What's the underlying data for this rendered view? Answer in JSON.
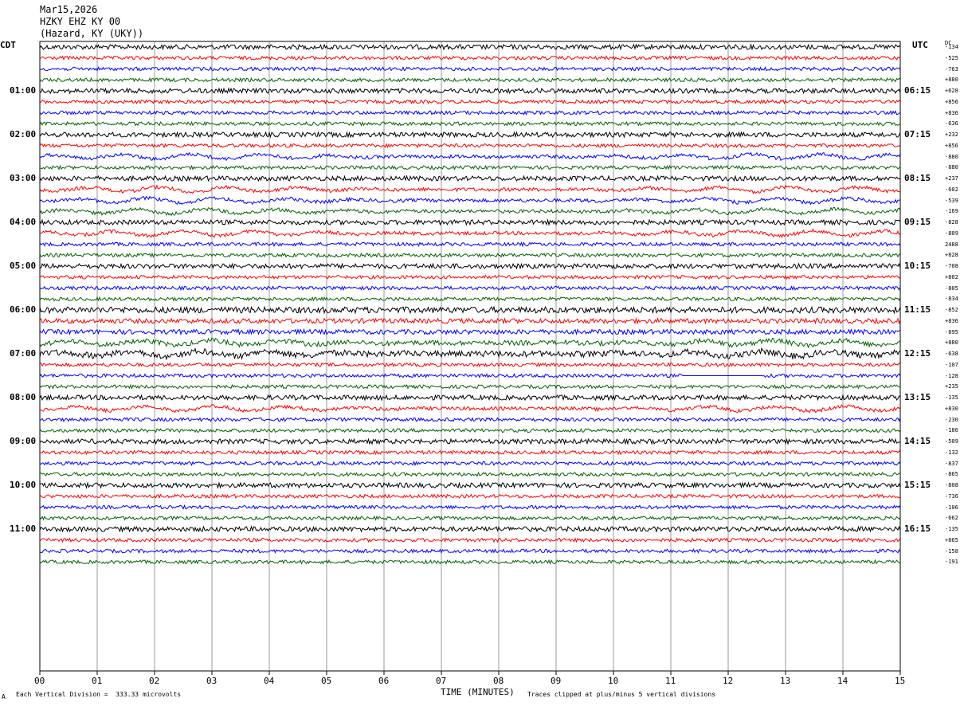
{
  "header": {
    "date": "Mar15,2026",
    "station": "HZKY EHZ KY 00",
    "location": "(Hazard, KY (UKY))"
  },
  "left_axis_title": "CDT",
  "right_axis_title": "UTC",
  "dc_title": "DC",
  "footer": {
    "scale_note": "Each Vertical Division =  333.33 microvolts",
    "clip_note": "Traces clipped at plus/minus 5 vertical divisions",
    "logo": "A"
  },
  "chart_data": {
    "type": "line",
    "xlabel": "TIME (MINUTES)",
    "xlim": [
      0,
      15
    ],
    "x_ticks": [
      "00",
      "01",
      "02",
      "03",
      "04",
      "05",
      "06",
      "07",
      "08",
      "09",
      "10",
      "11",
      "12",
      "13",
      "14",
      "15"
    ],
    "trace_minutes": 15,
    "trace_count": 48,
    "trace_colors": [
      "#000000",
      "#ff0000",
      "#0000ff",
      "#006400"
    ],
    "left_time_labels": [
      {
        "trace": 4,
        "label": "01:00"
      },
      {
        "trace": 8,
        "label": "02:00"
      },
      {
        "trace": 12,
        "label": "03:00"
      },
      {
        "trace": 16,
        "label": "04:00"
      },
      {
        "trace": 20,
        "label": "05:00"
      },
      {
        "trace": 24,
        "label": "06:00"
      },
      {
        "trace": 28,
        "label": "07:00"
      },
      {
        "trace": 32,
        "label": "08:00"
      },
      {
        "trace": 36,
        "label": "09:00"
      },
      {
        "trace": 40,
        "label": "10:00"
      },
      {
        "trace": 44,
        "label": "11:00"
      }
    ],
    "right_time_labels": [
      {
        "trace": 4,
        "label": "06:15"
      },
      {
        "trace": 8,
        "label": "07:15"
      },
      {
        "trace": 12,
        "label": "08:15"
      },
      {
        "trace": 16,
        "label": "09:15"
      },
      {
        "trace": 20,
        "label": "10:15"
      },
      {
        "trace": 24,
        "label": "11:15"
      },
      {
        "trace": 28,
        "label": "12:15"
      },
      {
        "trace": 32,
        "label": "13:15"
      },
      {
        "trace": 36,
        "label": "14:15"
      },
      {
        "trace": 40,
        "label": "15:15"
      },
      {
        "trace": 44,
        "label": "16:15"
      }
    ],
    "dc_offsets": [
      "-134",
      "-525",
      "-763",
      "+880",
      "+628",
      "+856",
      "+836",
      "-636",
      "+232",
      "+856",
      "-880",
      "-880",
      "+237",
      "-602",
      "-539",
      "-169",
      "-828",
      "-809",
      "2488",
      "+828",
      "-708",
      "+802",
      "-805",
      "-834",
      "-852",
      "+836",
      "-895",
      "+880",
      "-638",
      "-107",
      "-128",
      "+235",
      "-135",
      "+830",
      "-230",
      "-186",
      "-509",
      "-132",
      "-837",
      "-865",
      "-808",
      "-736",
      "-106",
      "-662",
      "-135",
      "+865",
      "-158",
      "-191"
    ],
    "flat_gap": {
      "trace": 30,
      "from": 11.2,
      "to": 12.6
    }
  }
}
